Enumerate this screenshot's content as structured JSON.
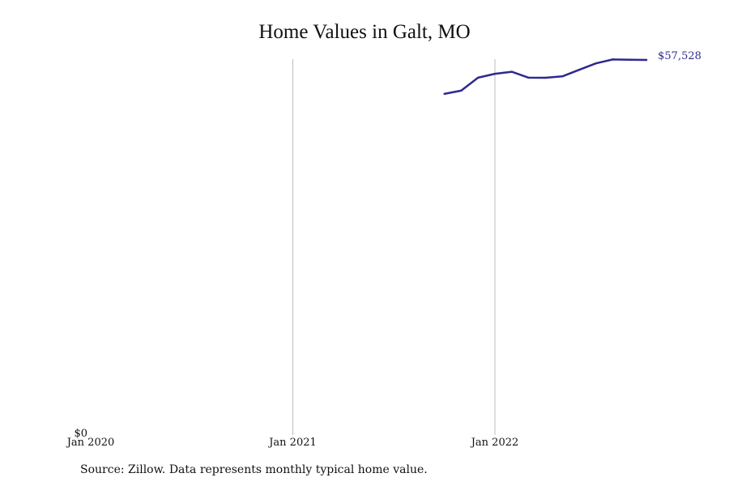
{
  "chart_data": {
    "type": "line",
    "title": "Home Values in Galt, MO",
    "source": "Source: Zillow. Data represents monthly typical home value.",
    "xlabel": "",
    "ylabel": "",
    "x_ticks": [
      "Jan 2020",
      "Jan 2021",
      "Jan 2022"
    ],
    "y_ticks": [
      "$0"
    ],
    "ylim": [
      0,
      57528
    ],
    "grid": "vertical lines at year ticks",
    "line_color": "#2e2a8c",
    "end_label": "$57,528",
    "series": [
      {
        "x": [
          "2021-10",
          "2021-11",
          "2021-12",
          "2022-01",
          "2022-02",
          "2022-03",
          "2022-04",
          "2022-05",
          "2022-06",
          "2022-07",
          "2022-08",
          "2022-09",
          "2022-10"
        ],
        "values": [
          52300,
          52800,
          54800,
          55400,
          55700,
          54800,
          54780,
          55000,
          56000,
          57000,
          57600,
          57550,
          57528
        ]
      }
    ]
  }
}
